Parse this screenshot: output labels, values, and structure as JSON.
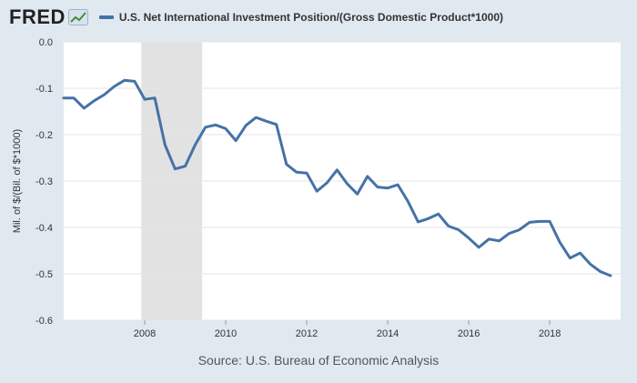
{
  "header": {
    "logo_text": "FRED",
    "logo_icon": "chart-line-icon",
    "legend_color": "#4572a7"
  },
  "source": "Source: U.S. Bureau of Economic Analysis",
  "chart_data": {
    "type": "line",
    "title": "U.S. Net International Investment Position/(Gross Domestic Product*1000)",
    "ylabel": "Mil. of $/(Bil. of $*1000)",
    "xlabel": "",
    "xlim": [
      2006.0,
      2019.75
    ],
    "ylim": [
      -0.6,
      0.0
    ],
    "yticks": [
      0.0,
      -0.1,
      -0.2,
      -0.3,
      -0.4,
      -0.5,
      -0.6
    ],
    "ytick_labels": [
      "0.0",
      "-0.1",
      "-0.2",
      "-0.3",
      "-0.4",
      "-0.5",
      "-0.6"
    ],
    "xticks": [
      2008,
      2010,
      2012,
      2014,
      2016,
      2018
    ],
    "xtick_labels": [
      "2008",
      "2010",
      "2012",
      "2014",
      "2016",
      "2018"
    ],
    "grid": true,
    "recession_bands": [
      [
        2007.917,
        2009.417
      ]
    ],
    "series": [
      {
        "name": "U.S. Net International Investment Position/(Gross Domestic Product*1000)",
        "color": "#4572a7",
        "x": [
          2006.0,
          2006.25,
          2006.5,
          2006.75,
          2007.0,
          2007.25,
          2007.5,
          2007.75,
          2008.0,
          2008.25,
          2008.5,
          2008.75,
          2009.0,
          2009.25,
          2009.5,
          2009.75,
          2010.0,
          2010.25,
          2010.5,
          2010.75,
          2011.0,
          2011.25,
          2011.5,
          2011.75,
          2012.0,
          2012.25,
          2012.5,
          2012.75,
          2013.0,
          2013.25,
          2013.5,
          2013.75,
          2014.0,
          2014.25,
          2014.5,
          2014.75,
          2015.0,
          2015.25,
          2015.5,
          2015.75,
          2016.0,
          2016.25,
          2016.5,
          2016.75,
          2017.0,
          2017.25,
          2017.5,
          2017.75,
          2018.0,
          2018.25,
          2018.5,
          2018.75,
          2019.0,
          2019.25,
          2019.5
        ],
        "y": [
          -0.121,
          -0.121,
          -0.143,
          -0.127,
          -0.114,
          -0.096,
          -0.083,
          -0.085,
          -0.124,
          -0.121,
          -0.222,
          -0.274,
          -0.268,
          -0.221,
          -0.184,
          -0.179,
          -0.187,
          -0.213,
          -0.18,
          -0.163,
          -0.171,
          -0.178,
          -0.264,
          -0.281,
          -0.283,
          -0.322,
          -0.304,
          -0.276,
          -0.306,
          -0.328,
          -0.29,
          -0.313,
          -0.315,
          -0.308,
          -0.344,
          -0.388,
          -0.381,
          -0.371,
          -0.397,
          -0.405,
          -0.423,
          -0.443,
          -0.425,
          -0.429,
          -0.413,
          -0.405,
          -0.389,
          -0.387,
          -0.387,
          -0.432,
          -0.466,
          -0.455,
          -0.479,
          -0.495,
          -0.504
        ]
      }
    ]
  }
}
